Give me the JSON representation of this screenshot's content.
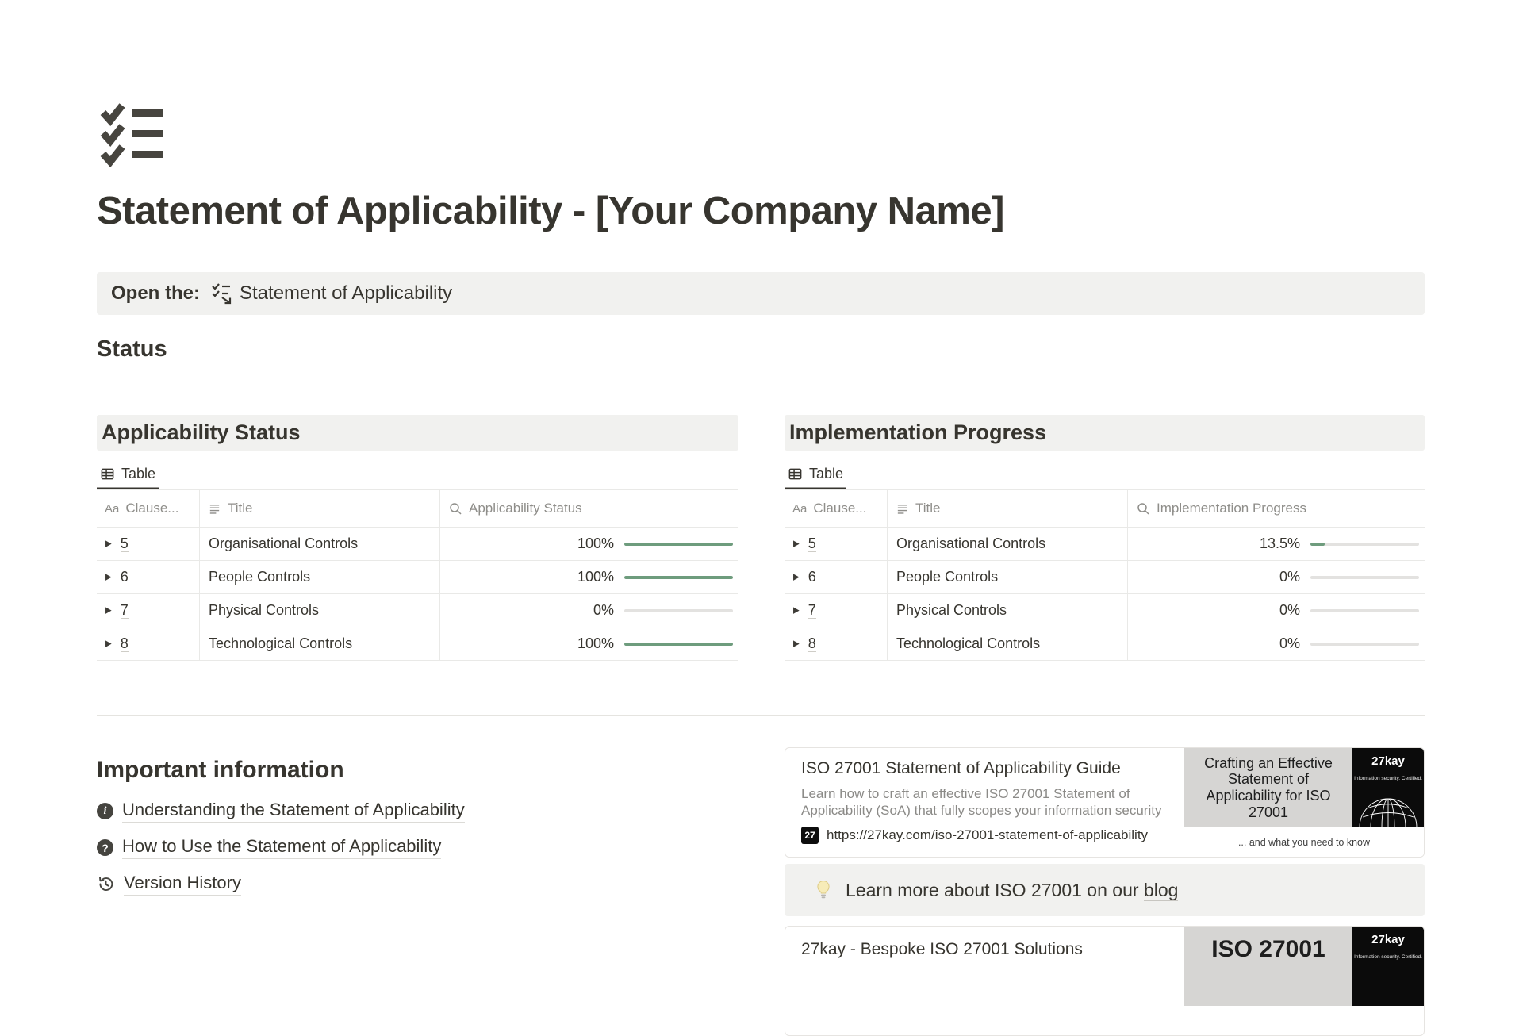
{
  "page": {
    "icon": "checklist-icon",
    "title": "Statement of Applicability - [Your Company Name]"
  },
  "open_callout": {
    "prefix": "Open the:",
    "link_icon": "checklist-link-icon",
    "link": "Statement of Applicability"
  },
  "status_heading": "Status",
  "tables": [
    {
      "section_title": "Applicability Status",
      "view_tab": "Table",
      "view_tab_icon": "table-icon",
      "columns": [
        {
          "icon": "text-property-icon",
          "label": "Clause..."
        },
        {
          "icon": "list-property-icon",
          "label": "Title"
        },
        {
          "icon": "search-icon",
          "label": "Applicability Status"
        }
      ],
      "rows": [
        {
          "clause": "5",
          "title": "Organisational Controls",
          "value": "100%",
          "pct": 100
        },
        {
          "clause": "6",
          "title": "People Controls",
          "value": "100%",
          "pct": 100
        },
        {
          "clause": "7",
          "title": "Physical Controls",
          "value": "0%",
          "pct": 0
        },
        {
          "clause": "8",
          "title": "Technological Controls",
          "value": "100%",
          "pct": 100
        }
      ]
    },
    {
      "section_title": "Implementation Progress",
      "view_tab": "Table",
      "view_tab_icon": "table-icon",
      "columns": [
        {
          "icon": "text-property-icon",
          "label": "Clause..."
        },
        {
          "icon": "list-property-icon",
          "label": "Title"
        },
        {
          "icon": "search-icon",
          "label": "Implementation Progress"
        }
      ],
      "rows": [
        {
          "clause": "5",
          "title": "Organisational Controls",
          "value": "13.5%",
          "pct": 13.5
        },
        {
          "clause": "6",
          "title": "People Controls",
          "value": "0%",
          "pct": 0
        },
        {
          "clause": "7",
          "title": "Physical Controls",
          "value": "0%",
          "pct": 0
        },
        {
          "clause": "8",
          "title": "Technological Controls",
          "value": "0%",
          "pct": 0
        }
      ]
    }
  ],
  "important": {
    "heading": "Important information",
    "links": [
      {
        "icon": "info-icon",
        "label": "Understanding the Statement of Applicability"
      },
      {
        "icon": "question-icon",
        "label": "How to Use the Statement of Applicability"
      },
      {
        "icon": "history-icon",
        "label": "Version History"
      }
    ]
  },
  "link_preview": {
    "title": "ISO 27001 Statement of Applicability Guide",
    "description": "Learn how to craft an effective ISO 27001 Statement of Applicability (SoA) that fully scopes your information security",
    "favicon_text": "27",
    "url": "https://27kay.com/iso-27001-statement-of-applicability",
    "thumb": {
      "headline": "Crafting an Effective Statement of Applicability for ISO 27001",
      "brand": "27kay",
      "brand_sub": "Information security. Certified.",
      "caption": "... and what you need to know"
    }
  },
  "blog_callout": {
    "icon": "lightbulb-icon",
    "text": "Learn more about ISO 27001 on our",
    "link": "blog"
  },
  "bottom_card": {
    "title": "27kay - Bespoke ISO 27001 Solutions",
    "thumb": {
      "headline": "ISO 27001",
      "brand": "27kay",
      "brand_sub": "Information security. Certified."
    }
  },
  "colors": {
    "progress_green": "#6e9c7d",
    "track_gray": "#e3e2e0",
    "callout_bg": "#f1f1ef",
    "text": "#37352f",
    "muted_header": "#8f8e8a"
  }
}
